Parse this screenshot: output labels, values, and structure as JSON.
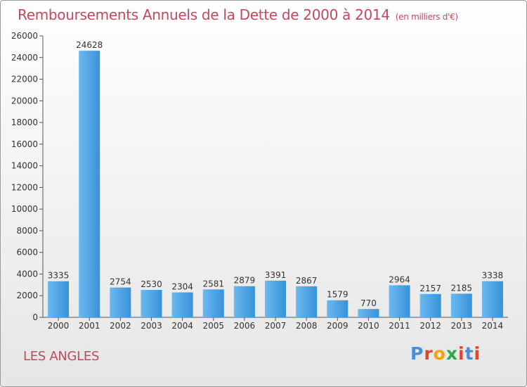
{
  "header": {
    "title": "Remboursements Annuels de la Dette de 2000 à 2014",
    "subtitle": "(en milliers d'€)"
  },
  "footer": {
    "place": "LES ANGLES",
    "logo": [
      "P",
      "r",
      "o",
      "x",
      "i",
      "t",
      "i"
    ]
  },
  "colors": {
    "title": "#c4485c",
    "bar_light": "#6cb8ef",
    "bar_dark": "#3792d9",
    "logo": [
      "#4a8fd6",
      "#e0472f",
      "#f2a01c",
      "#2da84a",
      "#e0472f",
      "#4a8fd6",
      "#e0472f"
    ]
  },
  "chart_data": {
    "type": "bar",
    "categories": [
      "2000",
      "2001",
      "2002",
      "2003",
      "2004",
      "2005",
      "2006",
      "2007",
      "2008",
      "2009",
      "2010",
      "2011",
      "2012",
      "2013",
      "2014"
    ],
    "values": [
      3335,
      24628,
      2754,
      2530,
      2304,
      2581,
      2879,
      3391,
      2867,
      1579,
      770,
      2964,
      2157,
      2185,
      3338
    ],
    "title": "Remboursements Annuels de la Dette de 2000 à 2014",
    "subtitle": "(en milliers d'€)",
    "ylim": [
      0,
      26000
    ],
    "yticks": [
      "0",
      "2000",
      "4000",
      "6000",
      "8000",
      "10000",
      "12000",
      "14000",
      "16000",
      "18000",
      "20000",
      "22000",
      "24000",
      "26000"
    ],
    "grid": false,
    "legend": "none"
  }
}
